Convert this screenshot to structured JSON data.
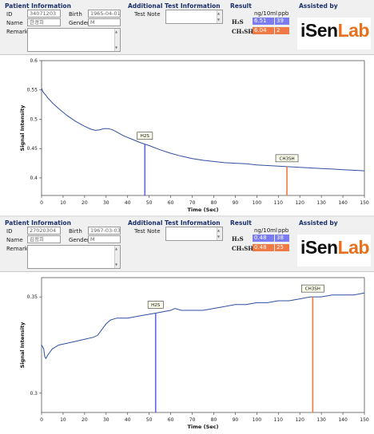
{
  "panels": [
    {
      "patient": {
        "section_title": "Patient Information",
        "id_label": "ID",
        "id_value": "34071203",
        "birth_label": "Birth",
        "birth_value": "1965-04-01",
        "name_label": "Name",
        "name_value": "한경희",
        "gender_label": "Gender",
        "gender_value": "M",
        "remarks_label": "Remarks",
        "remarks_value": ""
      },
      "additional": {
        "section_title": "Additional Test Information",
        "test_note_label": "Test Note",
        "test_note_value": ""
      },
      "result": {
        "section_title": "Result",
        "unit1": "ng/10ml",
        "unit2": "ppb",
        "rows": [
          {
            "gas": "H₂S",
            "ng": "6.51",
            "ppb": "39",
            "color": "#7b7bf3"
          },
          {
            "gas": "CH₃SH",
            "ng": "6.04",
            "ppb": "2",
            "color": "#f07a45"
          }
        ]
      },
      "assisted": {
        "section_title": "Assisted by",
        "logo_a": "iSen",
        "logo_b": "Lab"
      }
    },
    {
      "patient": {
        "section_title": "Patient Information",
        "id_label": "ID",
        "id_value": "27020304",
        "birth_label": "Birth",
        "birth_value": "1967-03-03",
        "name_label": "Name",
        "name_value": "김정희",
        "gender_label": "Gender",
        "gender_value": "M",
        "remarks_label": "Remarks",
        "remarks_value": ""
      },
      "additional": {
        "section_title": "Additional Test Information",
        "test_note_label": "Test Note",
        "test_note_value": ""
      },
      "result": {
        "section_title": "Result",
        "unit1": "ng/10ml",
        "unit2": "ppb",
        "rows": [
          {
            "gas": "H₂S",
            "ng": "0.48",
            "ppb": "38",
            "color": "#7b7bf3"
          },
          {
            "gas": "CH₃SH",
            "ng": "0.48",
            "ppb": "25",
            "color": "#f07a45"
          }
        ]
      },
      "assisted": {
        "section_title": "Assisted by",
        "logo_a": "iSen",
        "logo_b": "Lab"
      }
    }
  ],
  "chart_data": [
    {
      "type": "line",
      "xlabel": "Time (Sec)",
      "ylabel": "Signal Intensity",
      "xlim": [
        0,
        150
      ],
      "ylim": [
        0.37,
        0.6
      ],
      "xticks": [
        0,
        10,
        20,
        30,
        40,
        50,
        60,
        70,
        80,
        90,
        100,
        110,
        120,
        130,
        140,
        150
      ],
      "yticks": [
        0.4,
        0.45,
        0.5,
        0.55,
        0.6
      ],
      "ytick_labels": [
        "0.4",
        "0.45",
        "0.5",
        "0.55",
        "0.6"
      ],
      "grid": false,
      "line_color": "#2f4f9f",
      "series": [
        {
          "x": [
            0,
            0.5,
            1,
            2,
            3,
            5,
            8,
            12,
            16,
            20,
            23,
            25,
            27,
            29,
            31,
            33,
            35,
            38,
            42,
            46,
            50,
            55,
            60,
            65,
            70,
            75,
            80,
            85,
            90,
            95,
            100,
            105,
            110,
            115,
            120,
            125,
            130,
            135,
            140,
            145,
            150
          ],
          "y": [
            0.553,
            0.548,
            0.545,
            0.541,
            0.536,
            0.528,
            0.518,
            0.506,
            0.496,
            0.488,
            0.483,
            0.481,
            0.482,
            0.484,
            0.484,
            0.482,
            0.478,
            0.472,
            0.466,
            0.46,
            0.455,
            0.448,
            0.442,
            0.437,
            0.433,
            0.43,
            0.428,
            0.426,
            0.425,
            0.424,
            0.422,
            0.421,
            0.42,
            0.419,
            0.418,
            0.417,
            0.416,
            0.415,
            0.414,
            0.413,
            0.412
          ]
        }
      ],
      "markers": [
        {
          "label": "H2S",
          "x": 48,
          "color": "#5f67e8"
        },
        {
          "label": "CH3SH",
          "x": 114,
          "color": "#f07a3a"
        }
      ]
    },
    {
      "type": "line",
      "xlabel": "Time (Sec)",
      "ylabel": "Signal Intensity",
      "xlim": [
        0,
        150
      ],
      "ylim": [
        0.29,
        0.36
      ],
      "xticks": [
        0,
        10,
        20,
        30,
        40,
        50,
        60,
        70,
        80,
        90,
        100,
        110,
        120,
        130,
        140,
        150
      ],
      "yticks": [
        0.3,
        0.35
      ],
      "ytick_labels": [
        "0.3",
        "0.35"
      ],
      "grid": false,
      "line_color": "#2f4f9f",
      "series": [
        {
          "x": [
            0,
            1,
            1.5,
            2,
            3,
            5,
            8,
            12,
            16,
            20,
            24,
            26,
            28,
            30,
            32,
            35,
            40,
            45,
            50,
            55,
            60,
            62,
            65,
            70,
            75,
            80,
            85,
            90,
            95,
            100,
            105,
            110,
            115,
            120,
            125,
            130,
            135,
            140,
            145,
            150
          ],
          "y": [
            0.325,
            0.323,
            0.319,
            0.318,
            0.32,
            0.323,
            0.325,
            0.326,
            0.327,
            0.328,
            0.329,
            0.33,
            0.333,
            0.336,
            0.338,
            0.339,
            0.339,
            0.34,
            0.341,
            0.342,
            0.343,
            0.344,
            0.343,
            0.343,
            0.343,
            0.344,
            0.345,
            0.346,
            0.346,
            0.347,
            0.347,
            0.348,
            0.348,
            0.349,
            0.35,
            0.35,
            0.351,
            0.351,
            0.351,
            0.352
          ]
        }
      ],
      "markers": [
        {
          "label": "H2S",
          "x": 53,
          "color": "#5f67e8"
        },
        {
          "label": "CH3SH",
          "x": 126,
          "color": "#f07a3a"
        }
      ]
    }
  ]
}
